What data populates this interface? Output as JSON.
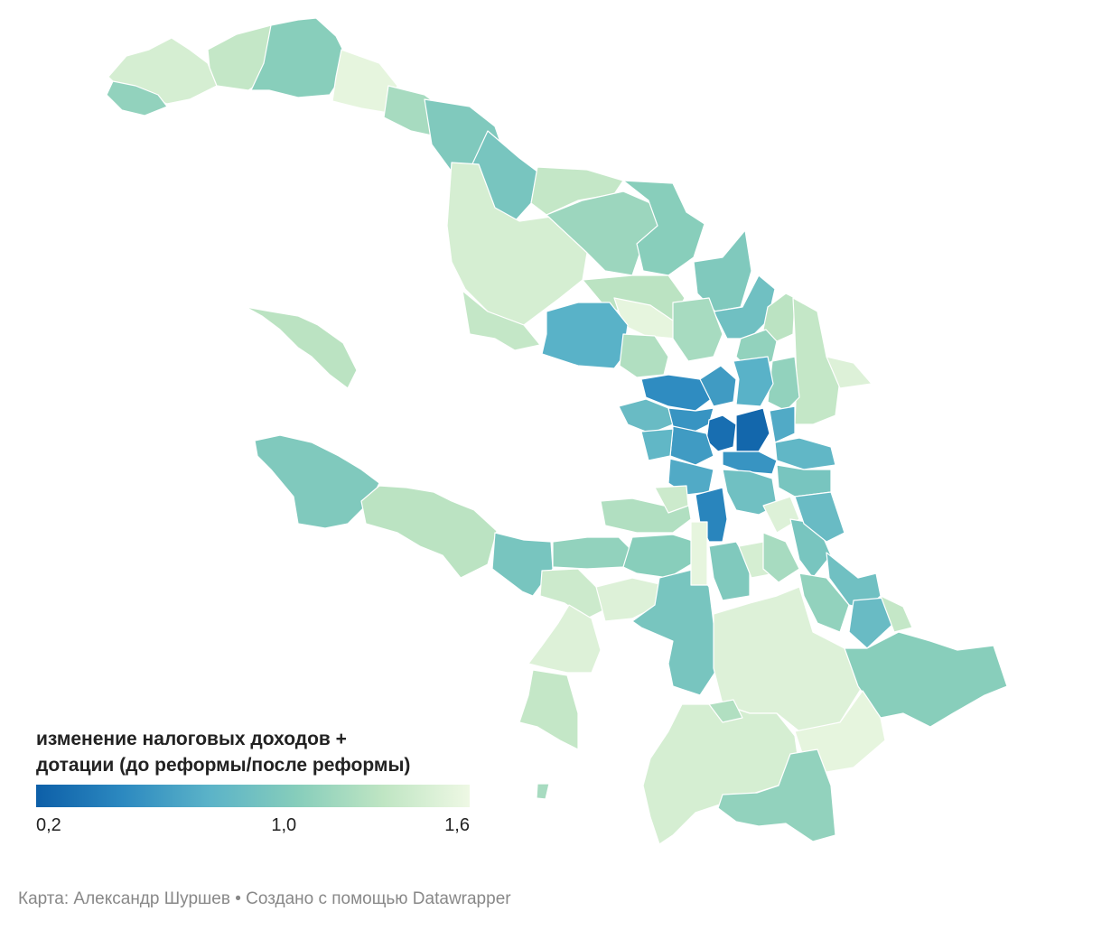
{
  "legend": {
    "title_line1": "изменение налоговых доходов +",
    "title_line2": "дотации (до реформы/после реформы)",
    "min_label": "0,2",
    "mid_label": "1,0",
    "max_label": "1,6",
    "scale": {
      "min": 0.2,
      "mid": 1.0,
      "max": 1.6
    },
    "colors": [
      "#0d5fa8",
      "#2c89c0",
      "#5bb3c8",
      "#86cdbb",
      "#bfe5c3",
      "#eef8e4"
    ]
  },
  "credit": {
    "text": "Карта: Александр Шуршев • Создано с помощью Datawrapper"
  },
  "map_colors": {
    "water": "#ffffff",
    "outline": "#ffffff"
  }
}
